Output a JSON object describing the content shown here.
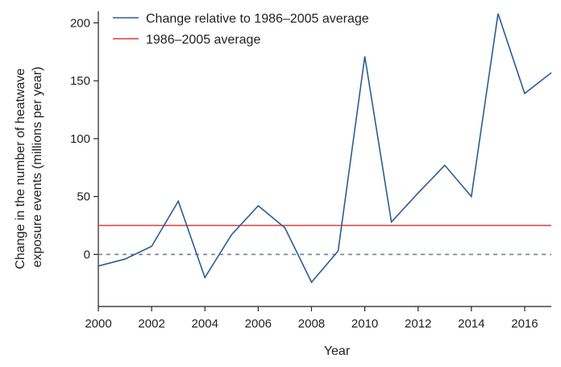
{
  "chart_data": {
    "type": "line",
    "xlabel": "Year",
    "ylabel": [
      "Change in the number of heatwave",
      "exposure events (millions per year)"
    ],
    "xlim": [
      2000,
      2017
    ],
    "ylim": [
      -45,
      210
    ],
    "x_ticks": [
      2000,
      2002,
      2004,
      2006,
      2008,
      2010,
      2012,
      2014,
      2016
    ],
    "y_ticks": [
      0,
      50,
      100,
      150,
      200
    ],
    "grid": false,
    "legend_position": "top-left",
    "zero_line": {
      "value": 0,
      "style": "dashed",
      "color": "#6f8291"
    },
    "series": [
      {
        "name": "Change relative to 1986–2005 average",
        "color": "#2a5d94",
        "x": [
          2000,
          2001,
          2002,
          2003,
          2004,
          2005,
          2006,
          2007,
          2008,
          2009,
          2010,
          2011,
          2012,
          2013,
          2014,
          2015,
          2016,
          2017
        ],
        "y": [
          -10,
          -4,
          7,
          46,
          -20,
          17,
          42,
          23,
          -24,
          3,
          171,
          28,
          53,
          77,
          50,
          208,
          139,
          157
        ]
      },
      {
        "name": "1986–2005 average",
        "color": "#e0393e",
        "x": [
          2000,
          2017
        ],
        "y": [
          25,
          25
        ]
      }
    ]
  }
}
